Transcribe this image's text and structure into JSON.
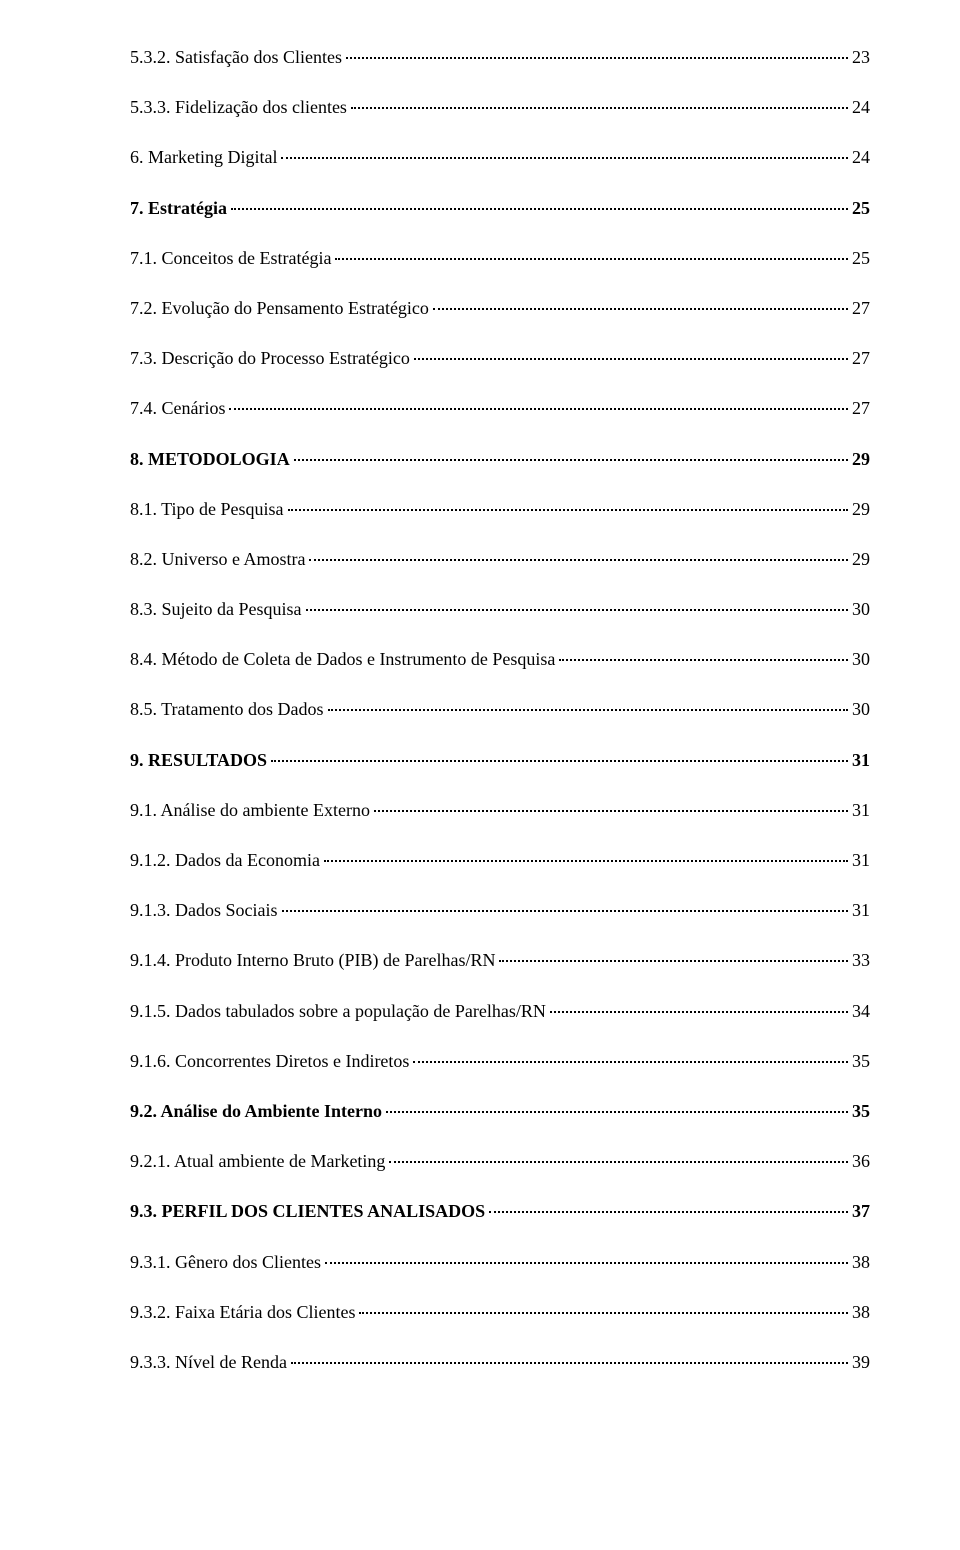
{
  "toc": {
    "entries": [
      {
        "label": "5.3.2. Satisfação dos Clientes",
        "page": "23",
        "bold": false
      },
      {
        "label": "5.3.3. Fidelização dos clientes",
        "page": "24",
        "bold": false
      },
      {
        "label": "6. Marketing Digital",
        "page": "24",
        "bold": false
      },
      {
        "label": "7. Estratégia",
        "page": "25",
        "bold": true
      },
      {
        "label": "7.1. Conceitos de Estratégia",
        "page": "25",
        "bold": false
      },
      {
        "label": "7.2. Evolução do Pensamento Estratégico",
        "page": "27",
        "bold": false
      },
      {
        "label": "7.3. Descrição do Processo Estratégico",
        "page": "27",
        "bold": false
      },
      {
        "label": "7.4. Cenários",
        "page": "27",
        "bold": false
      },
      {
        "label": "8. METODOLOGIA",
        "page": "29",
        "bold": true
      },
      {
        "label": "8.1. Tipo de Pesquisa",
        "page": "29",
        "bold": false
      },
      {
        "label": "8.2. Universo e Amostra",
        "page": "29",
        "bold": false
      },
      {
        "label": "8.3. Sujeito da Pesquisa",
        "page": "30",
        "bold": false
      },
      {
        "label": "8.4. Método de Coleta de Dados e Instrumento de Pesquisa",
        "page": "30",
        "bold": false
      },
      {
        "label": "8.5. Tratamento dos Dados",
        "page": "30",
        "bold": false
      },
      {
        "label": "9. RESULTADOS",
        "page": "31",
        "bold": true
      },
      {
        "label": "9.1. Análise do ambiente Externo",
        "page": "31",
        "bold": false
      },
      {
        "label": "9.1.2. Dados da Economia",
        "page": "31",
        "bold": false
      },
      {
        "label": "9.1.3. Dados Sociais",
        "page": "31",
        "bold": false
      },
      {
        "label": "9.1.4. Produto Interno Bruto (PIB) de Parelhas/RN",
        "page": "33",
        "bold": false
      },
      {
        "label": "9.1.5. Dados tabulados sobre a população de Parelhas/RN",
        "page": "34",
        "bold": false
      },
      {
        "label": "9.1.6. Concorrentes Diretos e Indiretos",
        "page": "35",
        "bold": false
      },
      {
        "label": "9.2. Análise do Ambiente Interno",
        "page": "35",
        "bold": true
      },
      {
        "label": "9.2.1. Atual ambiente de Marketing",
        "page": "36",
        "bold": false
      },
      {
        "label": "9.3. PERFIL DOS CLIENTES ANALISADOS",
        "page": "37",
        "bold": true
      },
      {
        "label": "9.3.1. Gênero dos Clientes",
        "page": "38",
        "bold": false
      },
      {
        "label": "9.3.2. Faixa Etária dos Clientes",
        "page": "38",
        "bold": false
      },
      {
        "label": "9.3.3. Nível de Renda",
        "page": "39",
        "bold": false
      }
    ]
  }
}
